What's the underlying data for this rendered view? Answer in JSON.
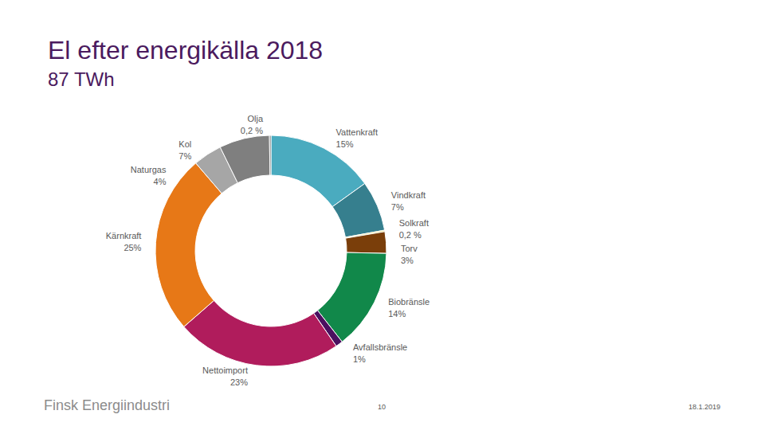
{
  "chart_data": {
    "type": "pie",
    "title": "El efter energikälla 2018",
    "subtitle": "87 TWh",
    "categories": [
      "Vattenkraft",
      "Vindkraft",
      "Solkraft",
      "Torv",
      "Biobränsle",
      "Avfallsbränsle",
      "Nettoimport",
      "Kärnkraft",
      "Naturgas",
      "Kol",
      "Olja"
    ],
    "values": [
      15,
      7,
      0.2,
      3,
      14,
      1,
      23,
      25,
      4,
      7,
      0.2
    ],
    "value_labels": [
      "15%",
      "7%",
      "0,2 %",
      "3%",
      "14%",
      "1%",
      "23%",
      "25%",
      "4%",
      "7%",
      "0,2 %"
    ],
    "colors": [
      "#4aabbf",
      "#367f8e",
      "#f2e27a",
      "#7a3e0a",
      "#11884a",
      "#4b1060",
      "#b01c5c",
      "#e77817",
      "#a6a6a6",
      "#7f7f7f",
      "#555555"
    ],
    "data_labels": true
  },
  "footer": {
    "source": "Finsk Energiindustri",
    "page": "10",
    "date": "18.1.2019"
  }
}
